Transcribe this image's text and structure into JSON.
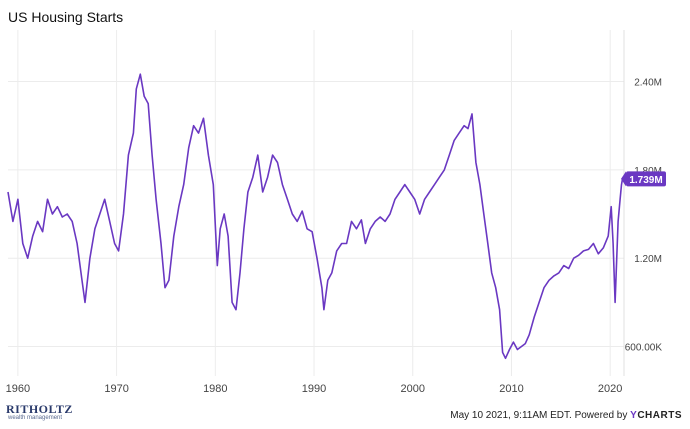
{
  "chart_data": {
    "type": "line",
    "title": "US Housing Starts",
    "xlabel": "",
    "ylabel": "",
    "xlim": [
      1959.0,
      2021.4
    ],
    "ylim": [
      400000,
      2750000
    ],
    "x_ticks": [
      1960,
      1970,
      1980,
      1990,
      2000,
      2010,
      2020
    ],
    "x_tick_labels": [
      "1960",
      "1970",
      "1980",
      "1990",
      "2000",
      "2010",
      "2020"
    ],
    "y_ticks": [
      600000,
      1200000,
      1800000,
      2400000
    ],
    "y_tick_labels": [
      "600.00K",
      "1.20M",
      "1.80M",
      "2.40M"
    ],
    "grid": true,
    "line_color": "#6a38c2",
    "last_value_label": "1.739M",
    "series": [
      {
        "x": [
          1959.0,
          1959.5,
          1960.0,
          1960.5,
          1961.0,
          1961.5,
          1962.0,
          1962.5,
          1963.0,
          1963.5,
          1964.0,
          1964.5,
          1965.0,
          1965.5,
          1966.0,
          1966.5,
          1966.8,
          1967.3,
          1967.8,
          1968.3,
          1968.8,
          1969.3,
          1969.8,
          1970.2,
          1970.7,
          1971.2,
          1971.7,
          1972.0,
          1972.4,
          1972.8,
          1973.2,
          1973.6,
          1974.0,
          1974.5,
          1974.9,
          1975.3,
          1975.8,
          1976.3,
          1976.8,
          1977.3,
          1977.8,
          1978.3,
          1978.8,
          1979.3,
          1979.8,
          1980.2,
          1980.5,
          1980.9,
          1981.3,
          1981.7,
          1982.1,
          1982.5,
          1982.9,
          1983.3,
          1983.8,
          1984.3,
          1984.8,
          1985.3,
          1985.8,
          1986.3,
          1986.8,
          1987.3,
          1987.8,
          1988.3,
          1988.8,
          1989.3,
          1989.8,
          1990.3,
          1990.8,
          1991.0,
          1991.4,
          1991.8,
          1992.3,
          1992.8,
          1993.3,
          1993.8,
          1994.3,
          1994.8,
          1995.2,
          1995.7,
          1996.2,
          1996.7,
          1997.2,
          1997.7,
          1998.2,
          1998.7,
          1999.2,
          1999.7,
          2000.2,
          2000.7,
          2001.2,
          2001.7,
          2002.2,
          2002.7,
          2003.2,
          2003.7,
          2004.2,
          2004.7,
          2005.2,
          2005.6,
          2006.0,
          2006.4,
          2006.8,
          2007.2,
          2007.6,
          2008.0,
          2008.4,
          2008.8,
          2009.1,
          2009.4,
          2009.8,
          2010.2,
          2010.6,
          2011.0,
          2011.4,
          2011.8,
          2012.3,
          2012.8,
          2013.3,
          2013.8,
          2014.3,
          2014.8,
          2015.3,
          2015.8,
          2016.3,
          2016.8,
          2017.3,
          2017.8,
          2018.3,
          2018.8,
          2019.3,
          2019.8,
          2020.1,
          2020.3,
          2020.5,
          2020.8,
          2021.0,
          2021.15,
          2021.25
        ],
        "y": [
          1650000,
          1450000,
          1600000,
          1300000,
          1200000,
          1350000,
          1450000,
          1380000,
          1600000,
          1500000,
          1550000,
          1480000,
          1500000,
          1450000,
          1300000,
          1050000,
          900000,
          1200000,
          1400000,
          1500000,
          1600000,
          1450000,
          1300000,
          1250000,
          1500000,
          1900000,
          2050000,
          2350000,
          2450000,
          2300000,
          2250000,
          1900000,
          1600000,
          1300000,
          1000000,
          1050000,
          1350000,
          1550000,
          1700000,
          1950000,
          2100000,
          2050000,
          2150000,
          1900000,
          1700000,
          1150000,
          1400000,
          1500000,
          1350000,
          900000,
          850000,
          1100000,
          1400000,
          1650000,
          1750000,
          1900000,
          1650000,
          1750000,
          1900000,
          1850000,
          1700000,
          1600000,
          1500000,
          1450000,
          1520000,
          1400000,
          1380000,
          1200000,
          1000000,
          850000,
          1050000,
          1100000,
          1250000,
          1300000,
          1300000,
          1450000,
          1400000,
          1460000,
          1300000,
          1400000,
          1450000,
          1480000,
          1450000,
          1500000,
          1600000,
          1650000,
          1700000,
          1650000,
          1600000,
          1500000,
          1600000,
          1650000,
          1700000,
          1750000,
          1800000,
          1900000,
          2000000,
          2050000,
          2100000,
          2080000,
          2180000,
          1850000,
          1700000,
          1500000,
          1300000,
          1100000,
          1000000,
          850000,
          560000,
          520000,
          580000,
          630000,
          580000,
          600000,
          620000,
          680000,
          800000,
          900000,
          1000000,
          1050000,
          1080000,
          1100000,
          1150000,
          1130000,
          1200000,
          1220000,
          1250000,
          1260000,
          1300000,
          1230000,
          1270000,
          1350000,
          1550000,
          1300000,
          900000,
          1450000,
          1600000,
          1700000,
          1739000
        ]
      }
    ]
  },
  "footer": {
    "timestamp": "May 10 2021, 9:11AM EDT.",
    "powered_by": "Powered by",
    "brand_y": "Y",
    "brand_rest": "CHARTS"
  },
  "logo": {
    "main": "RITHOLTZ",
    "sub": "wealth management"
  }
}
